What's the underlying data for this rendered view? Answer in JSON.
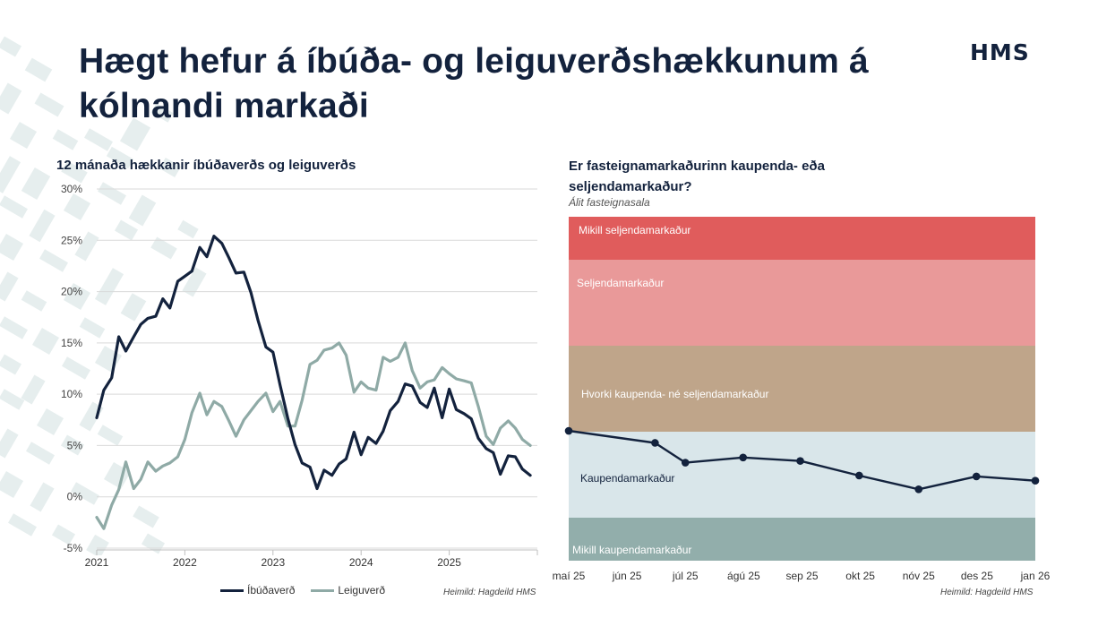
{
  "title": "Hægt hefur á íbúða- og leiguverðshækkunum á kólnandi markaði",
  "logo": "HMS",
  "colors": {
    "navy": "#13223d",
    "teal": "#8faaa6",
    "deco": "#e6eeee"
  },
  "left_chart_title": "12 mánaða hækkanir íbúðaverðs og leiguverðs",
  "right_chart_title": "Er fasteignamarkaðurinn kaupenda- eða seljendamarkaður?",
  "right_chart_subtitle": "Álit fasteignasala",
  "source_left": "Heimild: Hagdeild HMS",
  "source_right": "Heimild: Hagdeild HMS",
  "legend": [
    {
      "label": "Íbúðaverð",
      "color": "#13223d"
    },
    {
      "label": "Leiguverð",
      "color": "#8faaa6"
    }
  ],
  "chart_data": [
    {
      "type": "line",
      "title": "12 mánaða hækkanir íbúðaverðs og leiguverðs",
      "xlabel": "",
      "ylabel": "",
      "x_ticks": [
        "2021",
        "2022",
        "2023",
        "2024",
        "2025"
      ],
      "x_range": [
        2021.0,
        2026.0
      ],
      "y_ticks": [
        "30%",
        "25%",
        "20%",
        "15%",
        "10%",
        "5%",
        "0%",
        "-5%"
      ],
      "y_tick_values": [
        30,
        25,
        20,
        15,
        10,
        5,
        0,
        -5
      ],
      "ylim": [
        -5,
        30
      ],
      "grid": true,
      "legend_position": "bottom",
      "series": [
        {
          "name": "Íbúðaverð",
          "color": "#13223d",
          "width": 3.2,
          "values": [
            [
              2021.0,
              7.7
            ],
            [
              2021.08,
              10.4
            ],
            [
              2021.17,
              11.6
            ],
            [
              2021.25,
              15.6
            ],
            [
              2021.33,
              14.2
            ],
            [
              2021.42,
              15.6
            ],
            [
              2021.5,
              16.8
            ],
            [
              2021.58,
              17.4
            ],
            [
              2021.67,
              17.6
            ],
            [
              2021.75,
              19.3
            ],
            [
              2021.83,
              18.4
            ],
            [
              2021.92,
              21.0
            ],
            [
              2022.0,
              21.5
            ],
            [
              2022.08,
              22.0
            ],
            [
              2022.17,
              24.3
            ],
            [
              2022.25,
              23.4
            ],
            [
              2022.33,
              25.4
            ],
            [
              2022.42,
              24.7
            ],
            [
              2022.5,
              23.3
            ],
            [
              2022.58,
              21.8
            ],
            [
              2022.67,
              21.9
            ],
            [
              2022.75,
              19.9
            ],
            [
              2022.83,
              17.2
            ],
            [
              2022.92,
              14.6
            ],
            [
              2023.0,
              14.1
            ],
            [
              2023.08,
              10.9
            ],
            [
              2023.17,
              7.6
            ],
            [
              2023.25,
              5.1
            ],
            [
              2023.33,
              3.3
            ],
            [
              2023.42,
              2.9
            ],
            [
              2023.5,
              0.8
            ],
            [
              2023.58,
              2.6
            ],
            [
              2023.67,
              2.1
            ],
            [
              2023.75,
              3.2
            ],
            [
              2023.83,
              3.7
            ],
            [
              2023.92,
              6.3
            ],
            [
              2024.0,
              4.1
            ],
            [
              2024.08,
              5.8
            ],
            [
              2024.17,
              5.2
            ],
            [
              2024.25,
              6.4
            ],
            [
              2024.33,
              8.4
            ],
            [
              2024.42,
              9.3
            ],
            [
              2024.5,
              11.0
            ],
            [
              2024.58,
              10.8
            ],
            [
              2024.67,
              9.2
            ],
            [
              2024.75,
              8.7
            ],
            [
              2024.83,
              10.6
            ],
            [
              2024.92,
              7.7
            ],
            [
              2025.0,
              10.5
            ],
            [
              2025.08,
              8.5
            ],
            [
              2025.17,
              8.1
            ],
            [
              2025.25,
              7.6
            ],
            [
              2025.33,
              5.7
            ],
            [
              2025.42,
              4.7
            ],
            [
              2025.5,
              4.3
            ],
            [
              2025.58,
              2.2
            ],
            [
              2025.67,
              4.0
            ],
            [
              2025.75,
              3.9
            ],
            [
              2025.83,
              2.7
            ],
            [
              2025.92,
              2.1
            ]
          ]
        },
        {
          "name": "Leiguverð",
          "color": "#8faaa6",
          "width": 3.2,
          "values": [
            [
              2021.0,
              -2.0
            ],
            [
              2021.08,
              -3.1
            ],
            [
              2021.17,
              -0.8
            ],
            [
              2021.25,
              0.7
            ],
            [
              2021.33,
              3.4
            ],
            [
              2021.42,
              0.8
            ],
            [
              2021.5,
              1.7
            ],
            [
              2021.58,
              3.4
            ],
            [
              2021.67,
              2.5
            ],
            [
              2021.75,
              3.0
            ],
            [
              2021.83,
              3.3
            ],
            [
              2021.92,
              3.9
            ],
            [
              2022.0,
              5.6
            ],
            [
              2022.08,
              8.2
            ],
            [
              2022.17,
              10.1
            ],
            [
              2022.25,
              8.0
            ],
            [
              2022.33,
              9.3
            ],
            [
              2022.42,
              8.8
            ],
            [
              2022.5,
              7.4
            ],
            [
              2022.58,
              5.9
            ],
            [
              2022.67,
              7.5
            ],
            [
              2022.75,
              8.4
            ],
            [
              2022.83,
              9.3
            ],
            [
              2022.92,
              10.1
            ],
            [
              2023.0,
              8.3
            ],
            [
              2023.08,
              9.3
            ],
            [
              2023.17,
              6.9
            ],
            [
              2023.25,
              6.9
            ],
            [
              2023.33,
              9.4
            ],
            [
              2023.42,
              12.9
            ],
            [
              2023.5,
              13.3
            ],
            [
              2023.58,
              14.3
            ],
            [
              2023.67,
              14.5
            ],
            [
              2023.75,
              15.0
            ],
            [
              2023.83,
              13.8
            ],
            [
              2023.92,
              10.2
            ],
            [
              2024.0,
              11.2
            ],
            [
              2024.08,
              10.6
            ],
            [
              2024.17,
              10.4
            ],
            [
              2024.25,
              13.6
            ],
            [
              2024.33,
              13.2
            ],
            [
              2024.42,
              13.6
            ],
            [
              2024.5,
              15.0
            ],
            [
              2024.58,
              12.3
            ],
            [
              2024.67,
              10.6
            ],
            [
              2024.75,
              11.2
            ],
            [
              2024.83,
              11.4
            ],
            [
              2024.92,
              12.6
            ],
            [
              2025.0,
              12.0
            ],
            [
              2025.08,
              11.5
            ],
            [
              2025.17,
              11.3
            ],
            [
              2025.25,
              11.1
            ],
            [
              2025.33,
              8.8
            ],
            [
              2025.42,
              5.9
            ],
            [
              2025.5,
              5.1
            ],
            [
              2025.58,
              6.7
            ],
            [
              2025.67,
              7.4
            ],
            [
              2025.75,
              6.7
            ],
            [
              2025.83,
              5.6
            ],
            [
              2025.92,
              5.0
            ]
          ]
        }
      ]
    },
    {
      "type": "line",
      "title": "Er fasteignamarkaðurinn kaupenda- eða seljendamarkaður?",
      "subtitle": "Álit fasteignasala",
      "categories": [
        "maí 25",
        "jún 25",
        "júl 25",
        "ágú 25",
        "sep 25",
        "okt 25",
        "nóv 25",
        "des 25",
        "jan 26"
      ],
      "x_ticks": [
        "maí 25",
        "jún 25",
        "júl 25",
        "ágú 25",
        "sep 25",
        "okt 25",
        "nóv 25",
        "des 25",
        "jan 26"
      ],
      "x_range": [
        0,
        8
      ],
      "ylim": [
        0,
        4
      ],
      "bands": [
        {
          "label": "Mikill seljendamarkaður",
          "from": 3.5,
          "to": 4.0,
          "color": "#e05c5c"
        },
        {
          "label": "Seljendamarkaður",
          "from": 2.5,
          "to": 3.5,
          "color": "#e99999"
        },
        {
          "label": "Hvorki kaupenda- né seljendamarkaður",
          "from": 1.5,
          "to": 2.5,
          "color": "#bfa58a"
        },
        {
          "label": "Kaupendamarkaður",
          "from": 0.5,
          "to": 1.5,
          "color": "#d9e6ea"
        },
        {
          "label": "Mikill kaupendamarkaður",
          "from": 0.0,
          "to": 0.5,
          "color": "#92aeab"
        }
      ],
      "series": [
        {
          "name": "Álit fasteignasala",
          "color": "#13223d",
          "values": [
            [
              0.0,
              1.51
            ],
            [
              1.48,
              1.37
            ],
            [
              2.0,
              1.14
            ],
            [
              2.99,
              1.2
            ],
            [
              3.97,
              1.16
            ],
            [
              4.98,
              0.99
            ],
            [
              6.0,
              0.83
            ],
            [
              6.99,
              0.98
            ],
            [
              8.0,
              0.93
            ]
          ]
        }
      ]
    }
  ]
}
